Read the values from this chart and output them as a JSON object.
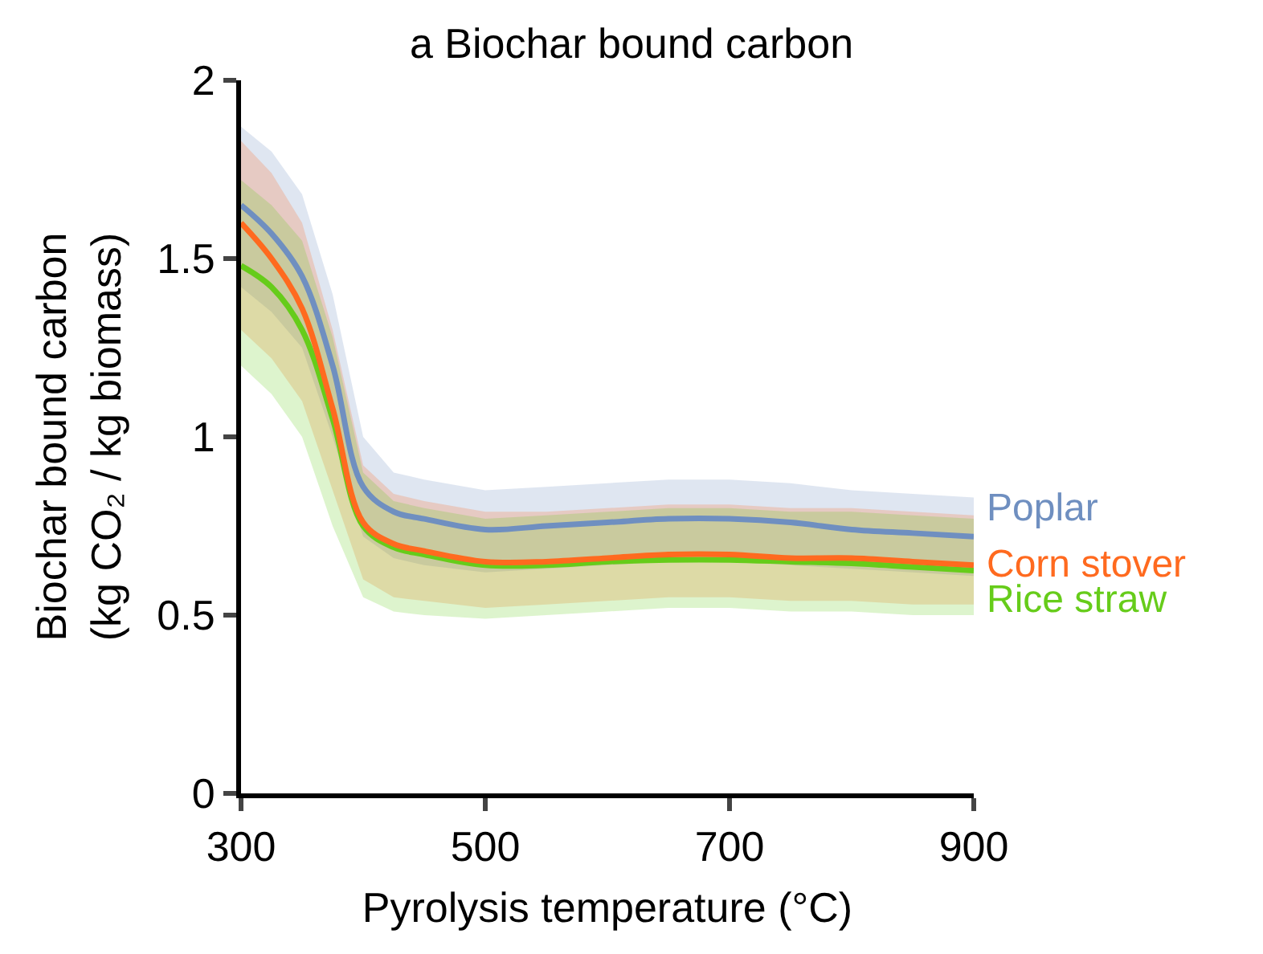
{
  "chart_data": {
    "type": "line",
    "title": "a Biochar bound carbon",
    "xlabel": "Pyrolysis temperature (°C)",
    "ylabel": "Biochar bound carbon\n(kg CO₂ / kg biomass)",
    "x": [
      300,
      325,
      350,
      375,
      400,
      425,
      450,
      500,
      550,
      600,
      650,
      700,
      750,
      800,
      850,
      900
    ],
    "series": [
      {
        "name": "Poplar",
        "color": "#6f8fc0",
        "values": [
          1.65,
          1.57,
          1.45,
          1.2,
          0.86,
          0.79,
          0.77,
          0.74,
          0.75,
          0.76,
          0.77,
          0.77,
          0.76,
          0.74,
          0.73,
          0.72
        ],
        "lower": [
          1.42,
          1.35,
          1.25,
          1.0,
          0.72,
          0.66,
          0.64,
          0.62,
          0.63,
          0.64,
          0.65,
          0.65,
          0.64,
          0.63,
          0.62,
          0.61
        ],
        "upper": [
          1.87,
          1.8,
          1.68,
          1.4,
          1.0,
          0.9,
          0.88,
          0.85,
          0.86,
          0.87,
          0.88,
          0.88,
          0.87,
          0.85,
          0.84,
          0.83
        ]
      },
      {
        "name": "Corn stover",
        "color": "#ff6a1f",
        "values": [
          1.6,
          1.5,
          1.36,
          1.08,
          0.76,
          0.7,
          0.68,
          0.65,
          0.65,
          0.66,
          0.67,
          0.67,
          0.66,
          0.66,
          0.65,
          0.64
        ],
        "lower": [
          1.3,
          1.22,
          1.1,
          0.85,
          0.6,
          0.55,
          0.54,
          0.52,
          0.53,
          0.54,
          0.55,
          0.55,
          0.54,
          0.54,
          0.53,
          0.53
        ],
        "upper": [
          1.83,
          1.74,
          1.6,
          1.3,
          0.92,
          0.84,
          0.82,
          0.79,
          0.79,
          0.8,
          0.81,
          0.81,
          0.8,
          0.8,
          0.79,
          0.78
        ]
      },
      {
        "name": "Rice straw",
        "color": "#66cc1a",
        "values": [
          1.48,
          1.42,
          1.3,
          1.05,
          0.75,
          0.69,
          0.67,
          0.64,
          0.64,
          0.65,
          0.655,
          0.655,
          0.65,
          0.645,
          0.635,
          0.625
        ],
        "lower": [
          1.2,
          1.12,
          1.0,
          0.75,
          0.55,
          0.51,
          0.5,
          0.49,
          0.5,
          0.51,
          0.52,
          0.52,
          0.51,
          0.51,
          0.5,
          0.5
        ],
        "upper": [
          1.72,
          1.65,
          1.55,
          1.28,
          0.9,
          0.82,
          0.8,
          0.77,
          0.78,
          0.79,
          0.8,
          0.8,
          0.79,
          0.79,
          0.78,
          0.77
        ]
      }
    ],
    "xlim": [
      300,
      900
    ],
    "xticks": [
      300,
      500,
      700,
      900
    ],
    "ylim": [
      0,
      2
    ],
    "yticks": [
      0,
      0.5,
      1,
      1.5,
      2
    ],
    "legend": false,
    "marker": "none",
    "line_style": "solid"
  }
}
